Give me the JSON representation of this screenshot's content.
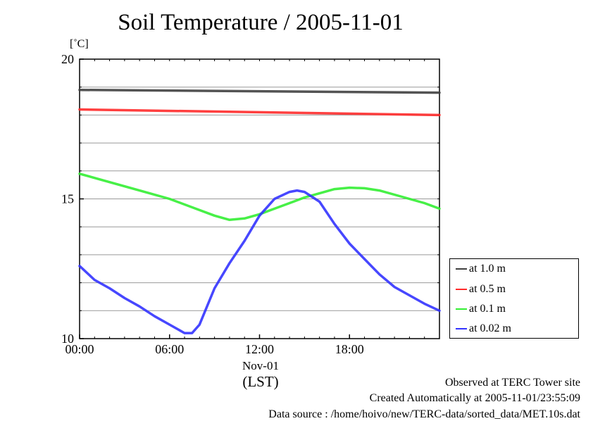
{
  "chart_data": {
    "type": "line",
    "title": "Soil Temperature / 2005-11-01",
    "ylabel": "[˚C]",
    "xlabel": "(LST)",
    "xdate_label": "Nov-01",
    "ylim": [
      10,
      20
    ],
    "xlim": [
      0,
      24
    ],
    "y_ticks": [
      "10",
      "15",
      "20"
    ],
    "x_ticks": [
      {
        "value": 0,
        "label": "00:00"
      },
      {
        "value": 6,
        "label": "06:00"
      },
      {
        "value": 12,
        "label": "12:00"
      },
      {
        "value": 18,
        "label": "18:00"
      }
    ],
    "grid": true,
    "legend_position": "right-bottom",
    "series": [
      {
        "name": "at 1.0 m",
        "color": "#404040",
        "x": [
          0,
          24
        ],
        "y": [
          18.9,
          18.8
        ]
      },
      {
        "name": "at 0.5 m",
        "color": "#ff2a2a",
        "x": [
          0,
          24
        ],
        "y": [
          18.2,
          18.0
        ]
      },
      {
        "name": "at 0.1 m",
        "color": "#33ee33",
        "x": [
          0,
          2,
          4,
          6,
          8,
          9,
          10,
          11,
          12,
          13,
          14,
          15,
          16,
          17,
          18,
          19,
          20,
          21,
          22,
          23,
          24
        ],
        "y": [
          15.9,
          15.6,
          15.3,
          15.0,
          14.6,
          14.4,
          14.25,
          14.3,
          14.45,
          14.65,
          14.85,
          15.05,
          15.2,
          15.35,
          15.4,
          15.38,
          15.3,
          15.15,
          15.0,
          14.85,
          14.65
        ]
      },
      {
        "name": "at 0.02 m",
        "color": "#3333ff",
        "x": [
          0,
          1,
          2,
          3,
          4,
          5,
          6,
          7,
          7.5,
          8,
          9,
          10,
          11,
          12,
          13,
          14,
          14.5,
          15,
          16,
          17,
          18,
          19,
          20,
          21,
          22,
          23,
          24
        ],
        "y": [
          12.6,
          12.1,
          11.8,
          11.45,
          11.15,
          10.8,
          10.5,
          10.2,
          10.2,
          10.5,
          11.8,
          12.7,
          13.5,
          14.4,
          15.0,
          15.25,
          15.3,
          15.25,
          14.9,
          14.1,
          13.4,
          12.85,
          12.3,
          11.85,
          11.55,
          11.25,
          11.0
        ]
      }
    ]
  },
  "footer": {
    "line1": "Observed at TERC Tower site",
    "line2": "Created Automatically at 2005-11-01/23:55:09",
    "line3": "Data source : /home/hoivo/new/TERC-data/sorted_data/MET.10s.dat"
  }
}
